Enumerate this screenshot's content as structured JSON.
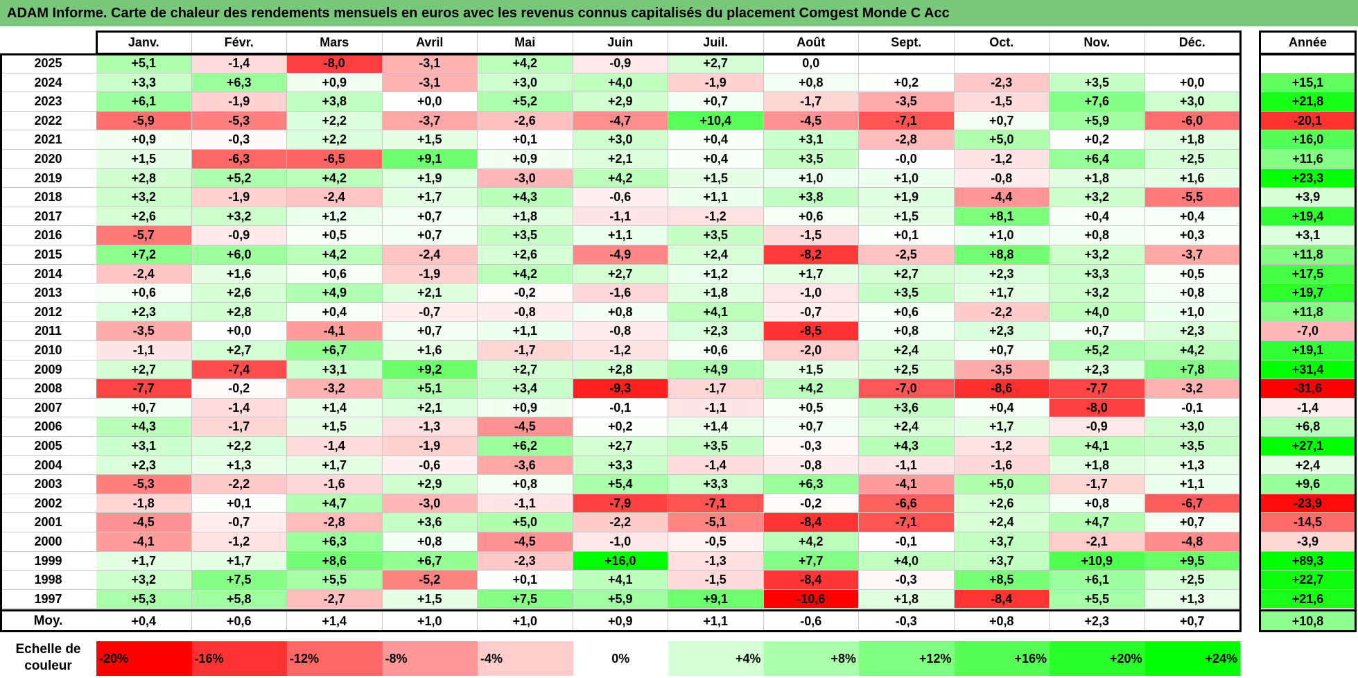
{
  "title": "ADAM Informe. Carte de chaleur des rendements mensuels en euros avec les revenus connus capitalisés du placement Comgest Monde C Acc",
  "chart_data": {
    "type": "heatmap",
    "title": "ADAM Informe. Carte de chaleur des rendements mensuels en euros avec les revenus connus capitalisés du placement Comgest Monde C Acc",
    "columns": [
      "Janv.",
      "Févr.",
      "Mars",
      "Avril",
      "Mai",
      "Juin",
      "Juil.",
      "Août",
      "Sept.",
      "Oct.",
      "Nov.",
      "Déc."
    ],
    "year_column_label": "Année",
    "rows": [
      {
        "year": "2025",
        "values": [
          "+5,1",
          "-1,4",
          "-8,0",
          "-3,1",
          "+4,2",
          "-0,9",
          "+2,7",
          "0,0",
          "",
          "",
          "",
          ""
        ],
        "annual": ""
      },
      {
        "year": "2024",
        "values": [
          "+3,3",
          "+6,3",
          "+0,9",
          "-3,1",
          "+3,0",
          "+4,0",
          "-1,9",
          "+0,8",
          "+0,2",
          "-2,3",
          "+3,5",
          "+0,0"
        ],
        "annual": "+15,1"
      },
      {
        "year": "2023",
        "values": [
          "+6,1",
          "-1,9",
          "+3,8",
          "+0,0",
          "+5,2",
          "+2,9",
          "+0,7",
          "-1,7",
          "-3,5",
          "-1,5",
          "+7,6",
          "+3,0"
        ],
        "annual": "+21,8"
      },
      {
        "year": "2022",
        "values": [
          "-5,9",
          "-5,3",
          "+2,2",
          "-3,7",
          "-2,6",
          "-4,7",
          "+10,4",
          "-4,5",
          "-7,1",
          "+0,7",
          "+5,9",
          "-6,0"
        ],
        "annual": "-20,1"
      },
      {
        "year": "2021",
        "values": [
          "+0,9",
          "-0,3",
          "+2,2",
          "+1,5",
          "+0,1",
          "+3,0",
          "+0,4",
          "+3,1",
          "-2,8",
          "+5,0",
          "+0,2",
          "+1,8"
        ],
        "annual": "+16,0"
      },
      {
        "year": "2020",
        "values": [
          "+1,5",
          "-6,3",
          "-6,5",
          "+9,1",
          "+0,9",
          "+2,1",
          "+0,4",
          "+3,5",
          "-0,0",
          "-1,2",
          "+6,4",
          "+2,5"
        ],
        "annual": "+11,6"
      },
      {
        "year": "2019",
        "values": [
          "+2,8",
          "+5,2",
          "+4,2",
          "+1,9",
          "-3,0",
          "+4,2",
          "+1,5",
          "+1,0",
          "+1,0",
          "-0,8",
          "+1,8",
          "+1,6"
        ],
        "annual": "+23,3"
      },
      {
        "year": "2018",
        "values": [
          "+3,2",
          "-1,9",
          "-2,4",
          "+1,7",
          "+4,3",
          "-0,6",
          "+1,1",
          "+3,8",
          "+1,9",
          "-4,4",
          "+3,2",
          "-5,5"
        ],
        "annual": "+3,9"
      },
      {
        "year": "2017",
        "values": [
          "+2,6",
          "+3,2",
          "+1,2",
          "+0,7",
          "+1,8",
          "-1,1",
          "-1,2",
          "+0,6",
          "+1,5",
          "+8,1",
          "+0,4",
          "+0,4"
        ],
        "annual": "+19,4"
      },
      {
        "year": "2016",
        "values": [
          "-5,7",
          "-0,9",
          "+0,5",
          "+0,7",
          "+3,5",
          "+1,1",
          "+3,5",
          "-1,5",
          "+0,1",
          "+1,0",
          "+0,8",
          "+0,3"
        ],
        "annual": "+3,1"
      },
      {
        "year": "2015",
        "values": [
          "+7,2",
          "+6,0",
          "+4,2",
          "-2,4",
          "+2,6",
          "-4,9",
          "+2,4",
          "-8,2",
          "-2,5",
          "+8,8",
          "+3,2",
          "-3,7"
        ],
        "annual": "+11,8"
      },
      {
        "year": "2014",
        "values": [
          "-2,4",
          "+1,6",
          "+0,6",
          "-1,9",
          "+4,2",
          "+2,7",
          "+1,2",
          "+1,7",
          "+2,7",
          "+2,3",
          "+3,3",
          "+0,5"
        ],
        "annual": "+17,5"
      },
      {
        "year": "2013",
        "values": [
          "+0,6",
          "+2,6",
          "+4,9",
          "+2,1",
          "-0,2",
          "-1,6",
          "+1,8",
          "-1,0",
          "+3,5",
          "+1,7",
          "+3,2",
          "+0,8"
        ],
        "annual": "+19,7"
      },
      {
        "year": "2012",
        "values": [
          "+2,3",
          "+2,8",
          "+0,4",
          "-0,7",
          "-0,8",
          "+0,8",
          "+4,1",
          "-0,7",
          "+0,6",
          "-2,2",
          "+4,0",
          "+1,0"
        ],
        "annual": "+11,8"
      },
      {
        "year": "2011",
        "values": [
          "-3,5",
          "+0,0",
          "-4,1",
          "+0,7",
          "+1,1",
          "-0,8",
          "+2,3",
          "-8,5",
          "+0,8",
          "+2,3",
          "+0,7",
          "+2,3"
        ],
        "annual": "-7,0"
      },
      {
        "year": "2010",
        "values": [
          "-1,1",
          "+2,7",
          "+6,7",
          "+1,6",
          "-1,7",
          "-1,2",
          "+0,6",
          "-2,0",
          "+2,4",
          "+0,7",
          "+5,2",
          "+4,2"
        ],
        "annual": "+19,1"
      },
      {
        "year": "2009",
        "values": [
          "+2,7",
          "-7,4",
          "+3,1",
          "+9,2",
          "+2,7",
          "+2,8",
          "+4,9",
          "+1,5",
          "+2,5",
          "-3,5",
          "+2,3",
          "+7,8"
        ],
        "annual": "+31,4"
      },
      {
        "year": "2008",
        "values": [
          "-7,7",
          "-0,2",
          "-3,2",
          "+5,1",
          "+3,4",
          "-9,3",
          "-1,7",
          "+4,2",
          "-7,0",
          "-8,6",
          "-7,7",
          "-3,2"
        ],
        "annual": "-31,6"
      },
      {
        "year": "2007",
        "values": [
          "+0,7",
          "-1,4",
          "+1,4",
          "+2,1",
          "+0,9",
          "-0,1",
          "-1,1",
          "+0,5",
          "+3,6",
          "+0,4",
          "-8,0",
          "-0,1"
        ],
        "annual": "-1,4"
      },
      {
        "year": "2006",
        "values": [
          "+4,3",
          "-1,7",
          "+1,5",
          "-1,3",
          "-4,5",
          "+0,2",
          "+1,4",
          "+0,7",
          "+2,4",
          "+1,7",
          "-0,9",
          "+3,0"
        ],
        "annual": "+6,8"
      },
      {
        "year": "2005",
        "values": [
          "+3,1",
          "+2,2",
          "-1,4",
          "-1,9",
          "+6,2",
          "+2,7",
          "+3,5",
          "-0,3",
          "+4,3",
          "-1,2",
          "+4,1",
          "+3,5"
        ],
        "annual": "+27,1"
      },
      {
        "year": "2004",
        "values": [
          "+2,3",
          "+1,3",
          "+1,7",
          "-0,6",
          "-3,6",
          "+3,3",
          "-1,4",
          "-0,8",
          "-1,1",
          "-1,6",
          "+1,8",
          "+1,3"
        ],
        "annual": "+2,4"
      },
      {
        "year": "2003",
        "values": [
          "-5,3",
          "-2,2",
          "-1,6",
          "+2,9",
          "+0,8",
          "+5,4",
          "+3,3",
          "+6,3",
          "-4,1",
          "+5,0",
          "-1,7",
          "+1,1"
        ],
        "annual": "+9,6"
      },
      {
        "year": "2002",
        "values": [
          "-1,8",
          "+0,1",
          "+4,7",
          "-3,0",
          "-1,1",
          "-7,9",
          "-7,1",
          "-0,2",
          "-6,6",
          "+2,6",
          "+0,8",
          "-6,7"
        ],
        "annual": "-23,9"
      },
      {
        "year": "2001",
        "values": [
          "-4,5",
          "-0,7",
          "-2,8",
          "+3,6",
          "+5,0",
          "-2,2",
          "-5,1",
          "-8,4",
          "-7,1",
          "+2,4",
          "+4,7",
          "+0,7"
        ],
        "annual": "-14,5"
      },
      {
        "year": "2000",
        "values": [
          "-4,1",
          "-1,2",
          "+6,3",
          "+0,8",
          "-4,5",
          "-1,0",
          "-0,5",
          "+4,2",
          "-0,1",
          "+3,7",
          "-2,1",
          "-4,8"
        ],
        "annual": "-3,9"
      },
      {
        "year": "1999",
        "values": [
          "+1,7",
          "+1,7",
          "+8,6",
          "+6,7",
          "-2,3",
          "+16,0",
          "-1,3",
          "+7,7",
          "+4,0",
          "+3,7",
          "+10,9",
          "+9,5"
        ],
        "annual": "+89,3"
      },
      {
        "year": "1998",
        "values": [
          "+3,2",
          "+7,5",
          "+5,5",
          "-5,2",
          "+0,1",
          "+4,1",
          "-1,5",
          "-8,4",
          "-0,3",
          "+8,5",
          "+6,1",
          "+2,5"
        ],
        "annual": "+22,7"
      },
      {
        "year": "1997",
        "values": [
          "+5,3",
          "+5,8",
          "-2,7",
          "+1,5",
          "+7,5",
          "+5,9",
          "+9,1",
          "-10,6",
          "+1,8",
          "-8,4",
          "+5,5",
          "+1,3"
        ],
        "annual": "+21,6"
      }
    ],
    "average": {
      "label": "Moy.",
      "values": [
        "+0,4",
        "+0,6",
        "+1,4",
        "+1,0",
        "+1,0",
        "+0,9",
        "+1,1",
        "-0,6",
        "-0,3",
        "+0,8",
        "+2,3",
        "+0,7"
      ],
      "annual": "+10,8"
    },
    "color_scale": {
      "label": "Echelle de couleur",
      "steps": [
        "-20%",
        "-16%",
        "-12%",
        "-8%",
        "-4%",
        "0%",
        "+4%",
        "+8%",
        "+12%",
        "+16%",
        "+20%",
        "+24%"
      ],
      "negative_color": "#ff0000",
      "positive_color": "#00ff00",
      "neutral_color": "#ffffff"
    }
  }
}
